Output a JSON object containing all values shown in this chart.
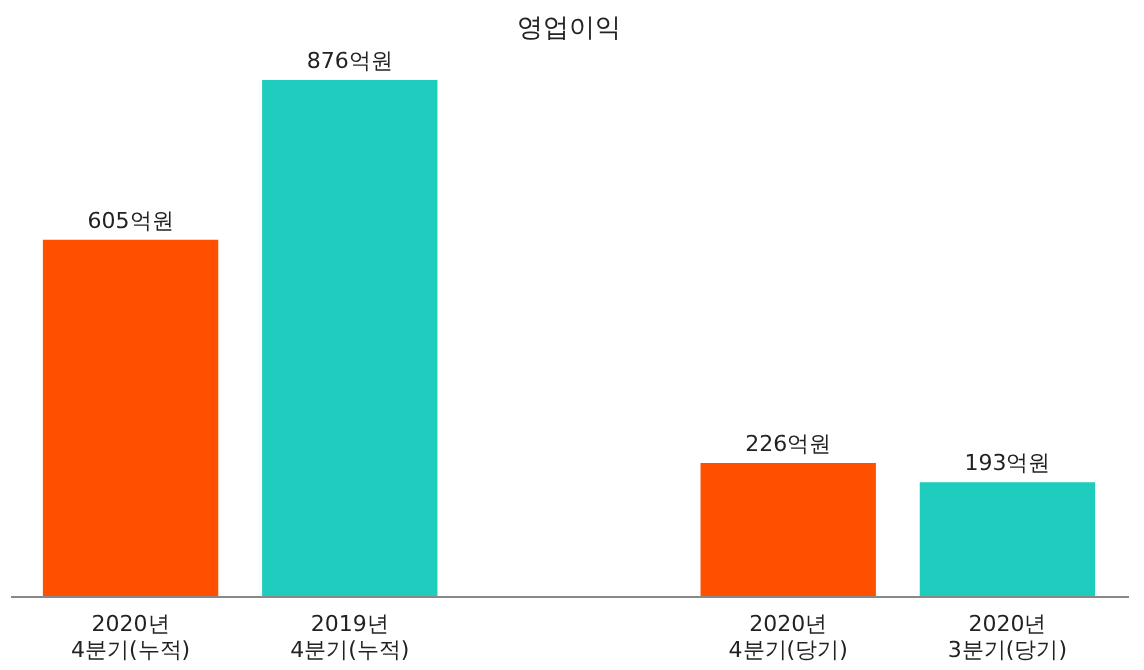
{
  "chart_data": {
    "type": "bar",
    "title": "영업이익",
    "categories": [
      "2020년\n4분기(누적)",
      "2019년\n4분기(누적)",
      null,
      "2020년\n4분기(당기)",
      "2020년\n3분기(당기)"
    ],
    "values": [
      605,
      876,
      null,
      226,
      193
    ],
    "colors": [
      "#ff5000",
      "#1ecdbd",
      null,
      "#ff5000",
      "#1ecdbd"
    ],
    "value_labels": [
      "605억원",
      "876억원",
      null,
      "226억원",
      "193억원"
    ]
  }
}
